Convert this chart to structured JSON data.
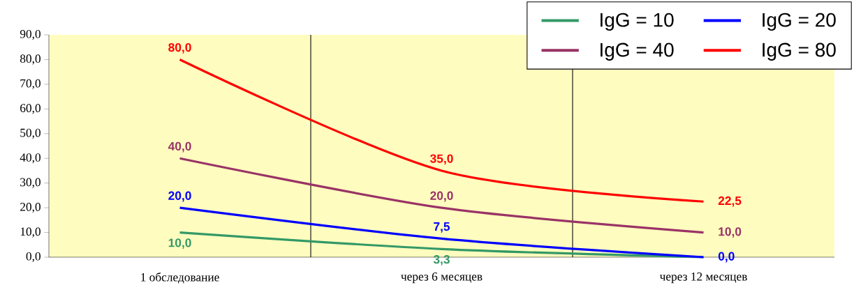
{
  "chart_data": {
    "type": "line",
    "categories": [
      "1 обследование",
      "через 6 месяцев",
      "через 12 месяцев"
    ],
    "series": [
      {
        "name": "IgG = 10",
        "color": "#339966",
        "values": [
          10.0,
          3.3,
          0.0
        ],
        "value_labels": [
          "10,0",
          "3,3",
          null
        ]
      },
      {
        "name": "IgG = 20",
        "color": "#0000ff",
        "values": [
          20.0,
          7.5,
          0.0
        ],
        "value_labels": [
          "20,0",
          "7,5",
          "0,0"
        ]
      },
      {
        "name": "IgG = 40",
        "color": "#993366",
        "values": [
          40.0,
          20.0,
          10.0
        ],
        "value_labels": [
          "40,0",
          "20,0",
          "10,0"
        ]
      },
      {
        "name": "IgG = 80",
        "color": "#ff0000",
        "values": [
          80.0,
          35.0,
          22.5
        ],
        "value_labels": [
          "80,0",
          "35,0",
          "22,5"
        ]
      }
    ],
    "ylim": [
      0,
      90
    ],
    "yticks": [
      {
        "value": 0,
        "label": "0,0"
      },
      {
        "value": 10,
        "label": "10,0"
      },
      {
        "value": 20,
        "label": "20,0"
      },
      {
        "value": 30,
        "label": "30,0"
      },
      {
        "value": 40,
        "label": "40,0"
      },
      {
        "value": 50,
        "label": "50,0"
      },
      {
        "value": 60,
        "label": "60,0"
      },
      {
        "value": 70,
        "label": "70,0"
      },
      {
        "value": 80,
        "label": "80,0"
      },
      {
        "value": 90,
        "label": "90,0"
      }
    ],
    "grid": "x",
    "legend": "top right",
    "marker": "none",
    "line_style": "solid"
  }
}
